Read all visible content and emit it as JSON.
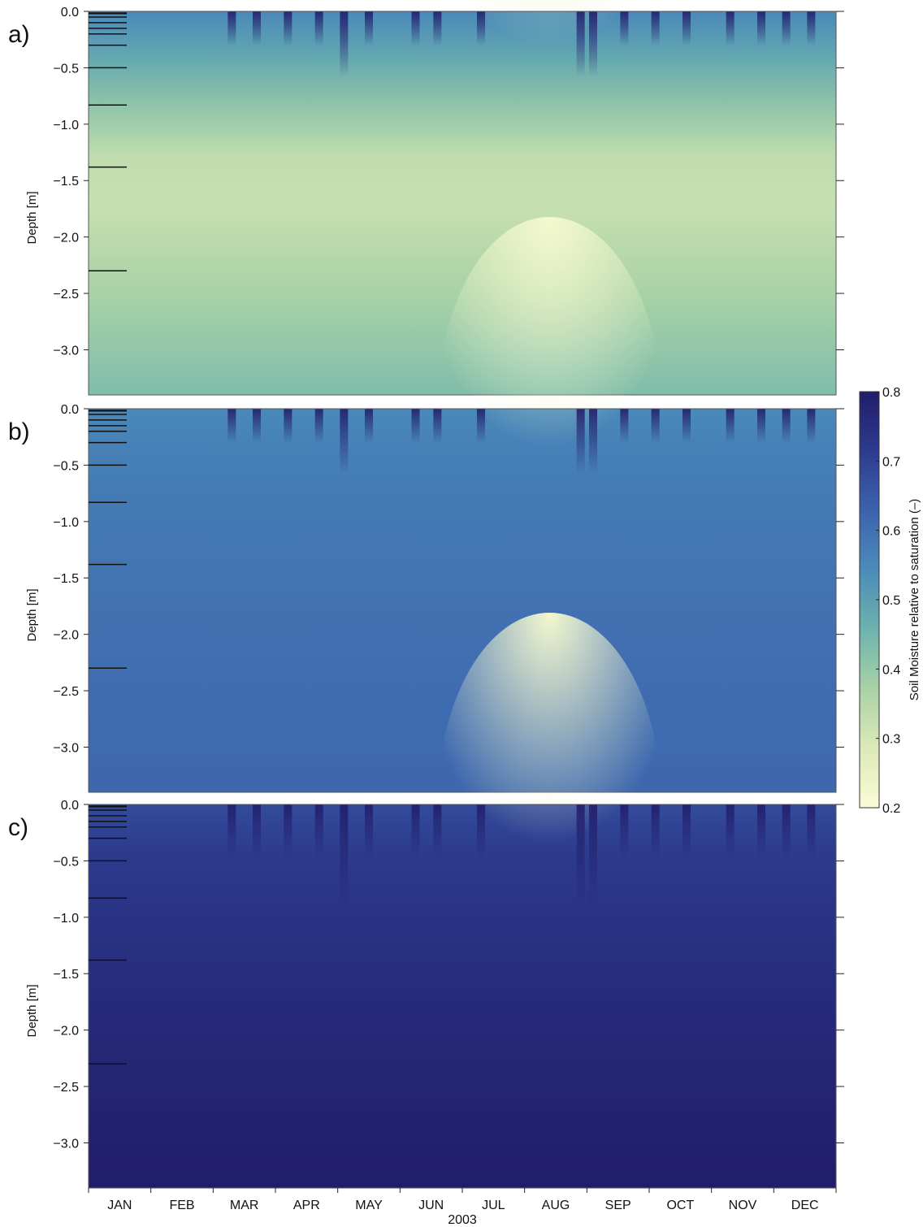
{
  "chart_data": {
    "type": "heatmap",
    "year_label": "2003",
    "x_categories": [
      "JAN",
      "FEB",
      "MAR",
      "APR",
      "MAY",
      "JUN",
      "JUL",
      "AUG",
      "SEP",
      "OCT",
      "NOV",
      "DEC"
    ],
    "ylabel": "Depth [m]",
    "ylim": [
      -3.4,
      0.0
    ],
    "y_ticks": [
      0.0,
      -0.5,
      -1.0,
      -1.5,
      -2.0,
      -2.5,
      -3.0
    ],
    "y_tick_labels": [
      "0.0",
      "−0.5",
      "−1.0",
      "−1.5",
      "−2.0",
      "−2.5",
      "−3.0"
    ],
    "sensor_depths_m": [
      0.0,
      -0.02,
      -0.05,
      -0.1,
      -0.15,
      -0.2,
      -0.3,
      -0.5,
      -0.83,
      -1.38,
      -2.3
    ],
    "colorbar": {
      "label": "Soil Moisture relative to saturation (–)",
      "min": 0.2,
      "max": 0.8,
      "ticks": [
        0.2,
        0.3,
        0.4,
        0.5,
        0.6,
        0.7,
        0.8
      ],
      "tick_labels": [
        "0.2",
        "0.3",
        "0.4",
        "0.5",
        "0.6",
        "0.7",
        "0.8"
      ],
      "colormap": [
        "#fbfcd6",
        "#dce9b8",
        "#a9d2a6",
        "#6db3ae",
        "#4b8cba",
        "#3c63ad",
        "#2d3b8e",
        "#211d6b"
      ]
    },
    "panels": [
      {
        "label": "a)",
        "surface_mean": 0.55,
        "deep_mean": 0.32,
        "summer_dry_surface_min": 0.25
      },
      {
        "label": "b)",
        "surface_mean": 0.55,
        "deep_mean": 0.62,
        "summer_dry_surface_min": 0.22
      },
      {
        "label": "c)",
        "surface_mean": 0.68,
        "deep_mean": 0.8,
        "summer_dry_surface_min": 0.22
      }
    ]
  }
}
